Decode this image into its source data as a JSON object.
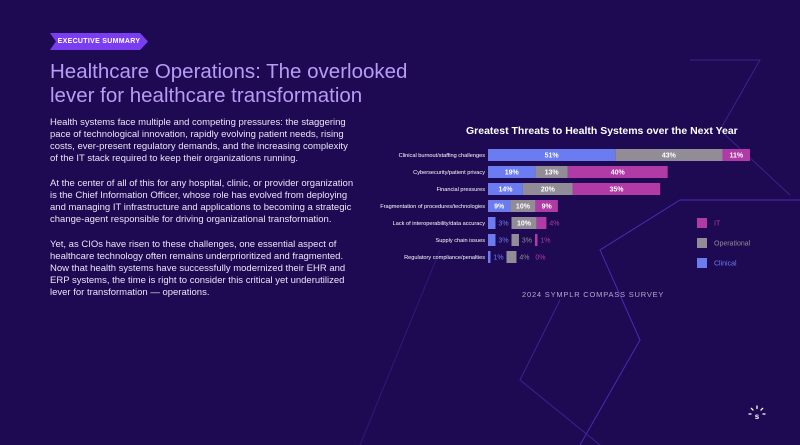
{
  "header": {
    "tag": "EXECUTIVE SUMMARY"
  },
  "title": "Healthcare Operations: The overlooked lever for healthcare transformation",
  "paragraphs": [
    "Health systems face multiple and competing pressures: the staggering pace of technological innovation, rapidly evolving patient needs, rising costs, ever-present regulatory demands, and the increasing complexity of the IT stack required to keep their organizations running.",
    "At the center of all of this for any hospital, clinic, or provider organization is the Chief Information Officer, whose role has evolved from deploying and managing IT infrastructure and applications to becoming a strategic change-agent responsible for driving organizational transformation.",
    "Yet, as CIOs have risen to these challenges, one essential aspect of healthcare technology often remains underprioritized and fragmented. Now that health systems have successfully modernized their EHR and ERP systems, the time is right to consider this critical yet underutilized lever for transformation — operations."
  ],
  "source": "2024 SYMPLR COMPASS SURVEY",
  "colors": {
    "background": "#1e0a52",
    "clinical": "#6b7cf0",
    "operational": "#918c95",
    "it": "#b03aa6",
    "accent": "#7a3ef0"
  },
  "chart_data": {
    "type": "bar",
    "orientation": "horizontal",
    "stacked": true,
    "title": "Greatest Threats to Health Systems over the Next Year",
    "categories": [
      "Clinical burnout/staffing challenges",
      "Cybersecurity/patient privacy",
      "Financial pressures",
      "Fragmentation of procedures/technologies",
      "Lack of interoperability/data accuracy",
      "Supply chain issues",
      "Regulatory compliance/penalties"
    ],
    "series": [
      {
        "name": "Clinical",
        "color": "#6b7cf0",
        "values": [
          51,
          19,
          14,
          9,
          3,
          3,
          1
        ]
      },
      {
        "name": "Operational",
        "color": "#918c95",
        "values": [
          43,
          13,
          20,
          10,
          10,
          3,
          4
        ]
      },
      {
        "name": "IT",
        "color": "#b03aa6",
        "values": [
          11,
          40,
          35,
          9,
          4,
          1,
          0
        ]
      }
    ],
    "legend_order": [
      "IT",
      "Operational",
      "Clinical"
    ],
    "legend_position": "right",
    "xlim": [
      0,
      105
    ],
    "grid": false
  }
}
